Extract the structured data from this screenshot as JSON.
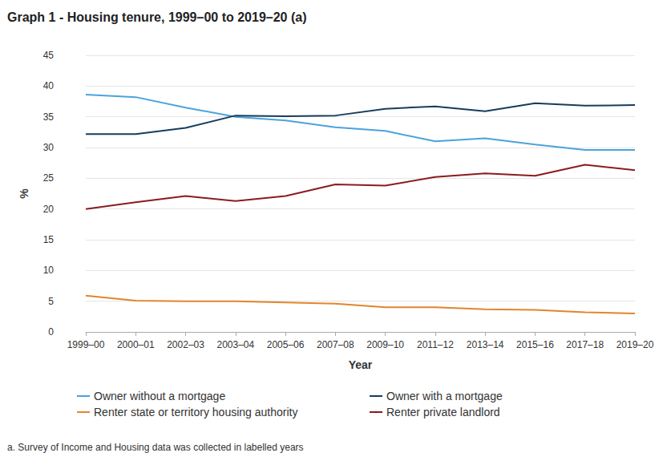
{
  "chart_data": {
    "type": "line",
    "title": "Graph 1 - Housing tenure, 1999–00 to 2019–20 (a)",
    "x_label": "Year",
    "y_label": "%",
    "footnote": "a. Survey of Income and Housing data was collected in labelled years",
    "categories": [
      "1999–00",
      "2000–01",
      "2002–03",
      "2003–04",
      "2005–06",
      "2007–08",
      "2009–10",
      "2011–12",
      "2013–14",
      "2015–16",
      "2017–18",
      "2019–20"
    ],
    "series": [
      {
        "name": "Owner without a mortgage",
        "color": "#4ba3da",
        "values": [
          38.6,
          38.2,
          36.5,
          35.0,
          34.4,
          33.3,
          32.7,
          31.0,
          31.5,
          30.5,
          29.6,
          29.6
        ]
      },
      {
        "name": "Owner with a mortgage",
        "color": "#173d5c",
        "values": [
          32.2,
          32.2,
          33.2,
          35.2,
          35.1,
          35.2,
          36.3,
          36.7,
          35.9,
          37.2,
          36.8,
          36.9
        ]
      },
      {
        "name": "Renter state or territory housing authority",
        "color": "#e3852b",
        "values": [
          5.9,
          5.1,
          5.0,
          5.0,
          4.8,
          4.6,
          4.0,
          4.0,
          3.7,
          3.6,
          3.2,
          3.0
        ]
      },
      {
        "name": "Renter private landlord",
        "color": "#8a1c1f",
        "values": [
          20.0,
          21.1,
          22.1,
          21.3,
          22.1,
          24.0,
          23.8,
          25.2,
          25.8,
          25.4,
          27.2,
          26.3
        ]
      }
    ],
    "ylim": [
      0,
      45
    ],
    "yticks": [
      0,
      5,
      10,
      15,
      20,
      25,
      30,
      35,
      40,
      45
    ],
    "grid": true,
    "legend": "bottom"
  }
}
